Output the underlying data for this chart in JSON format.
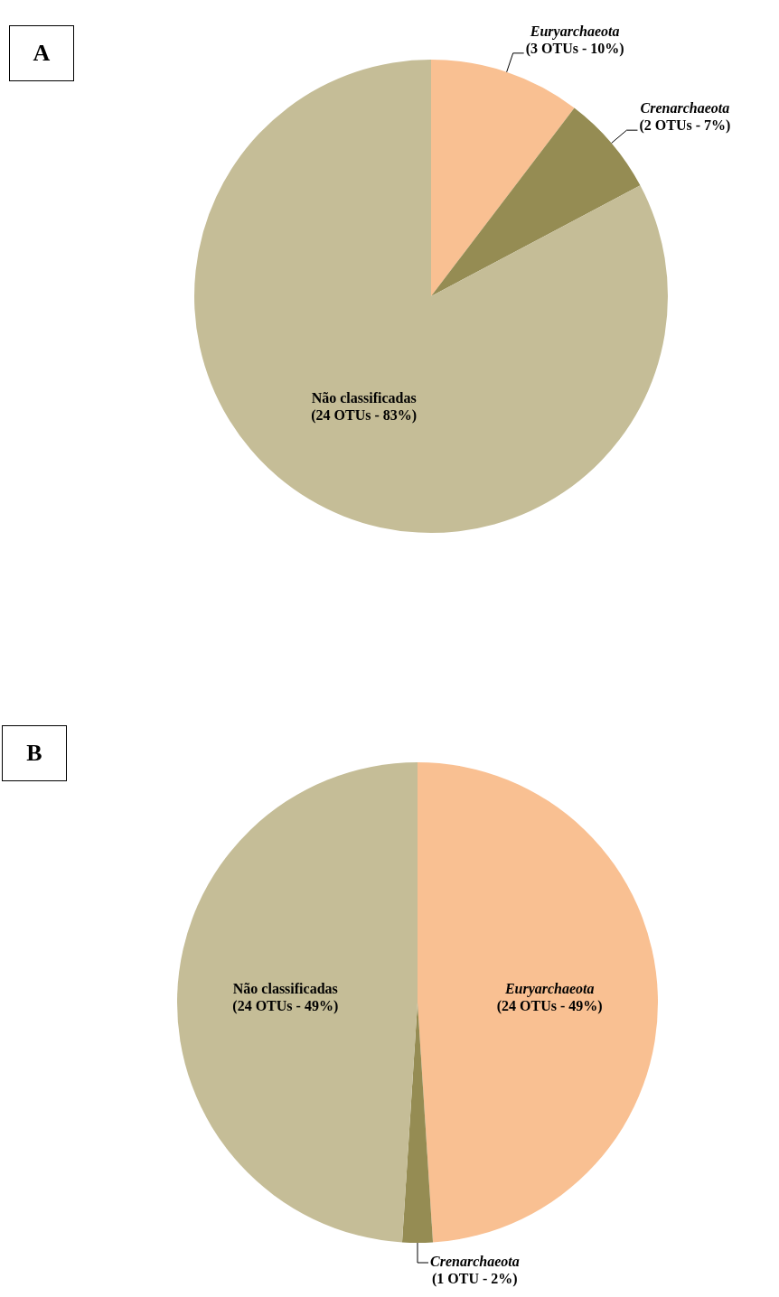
{
  "chart_data": [
    {
      "type": "pie",
      "title": "A",
      "categories": [
        "Euryarchaeota",
        "Crenarchaeota",
        "Não classificadas"
      ],
      "values": [
        3,
        2,
        24
      ],
      "colors": [
        "#f9c092",
        "#958c53",
        "#c5bd97"
      ],
      "value_labels": [
        "(3 OTUs - 10%)",
        "(2 OTUs - 7%)",
        "(24 OTUs - 83%)"
      ],
      "legend": false
    },
    {
      "type": "pie",
      "title": "B",
      "categories": [
        "Euryarchaeota",
        "Crenarchaeota",
        "Não classificadas"
      ],
      "values": [
        24,
        1,
        24
      ],
      "colors": [
        "#f9c092",
        "#958c53",
        "#c5bd97"
      ],
      "value_labels": [
        "(24 OTUs - 49%)",
        "(1 OTU - 2%)",
        "(24 OTUs - 49%)"
      ],
      "legend": false
    }
  ]
}
